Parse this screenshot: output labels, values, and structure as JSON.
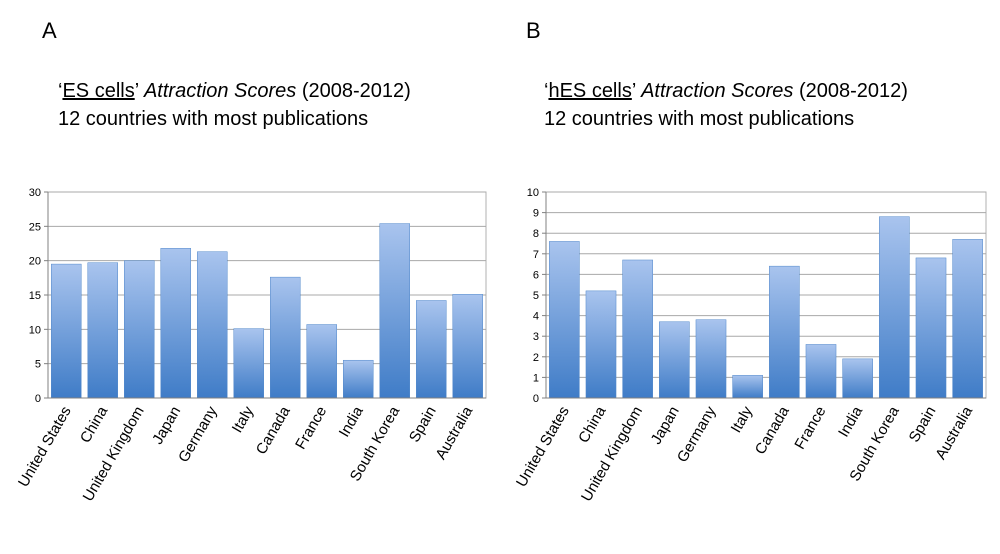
{
  "chart_data": [
    {
      "type": "bar",
      "panel": "A",
      "title_quote_open": "‘",
      "title_term": "ES cells",
      "title_quote_close": "’ ",
      "title_italic": "Attraction Scores",
      "title_years": " (2008-2012)",
      "subtitle": "12 countries with most publications",
      "categories": [
        "United States",
        "China",
        "United Kingdom",
        "Japan",
        "Germany",
        "Italy",
        "Canada",
        "France",
        "India",
        "South Korea",
        "Spain",
        "Australia"
      ],
      "values": [
        19.5,
        19.7,
        20.0,
        21.8,
        21.3,
        10.1,
        17.6,
        10.7,
        5.5,
        25.4,
        14.2,
        15.1
      ],
      "ylim": [
        0,
        30
      ],
      "yticks": [
        0,
        5,
        10,
        15,
        20,
        25,
        30
      ],
      "xlabel": "",
      "ylabel": "",
      "grid": true,
      "bar_color_top": "#a9c4ee",
      "bar_color_bottom": "#3f7cc7"
    },
    {
      "type": "bar",
      "panel": "B",
      "title_quote_open": "‘",
      "title_term": "hES cells",
      "title_quote_close": "’ ",
      "title_italic": "Attraction Scores",
      "title_years": " (2008-2012)",
      "subtitle": "12 countries with most publications",
      "categories": [
        "United States",
        "China",
        "United Kingdom",
        "Japan",
        "Germany",
        "Italy",
        "Canada",
        "France",
        "India",
        "South Korea",
        "Spain",
        "Australia"
      ],
      "values": [
        7.6,
        5.2,
        6.7,
        3.7,
        3.8,
        1.1,
        6.4,
        2.6,
        1.9,
        8.8,
        6.8,
        7.7
      ],
      "ylim": [
        0,
        10
      ],
      "yticks": [
        0,
        1,
        2,
        3,
        4,
        5,
        6,
        7,
        8,
        9,
        10
      ],
      "xlabel": "",
      "ylabel": "",
      "grid": true,
      "bar_color_top": "#a9c4ee",
      "bar_color_bottom": "#3f7cc7"
    }
  ]
}
